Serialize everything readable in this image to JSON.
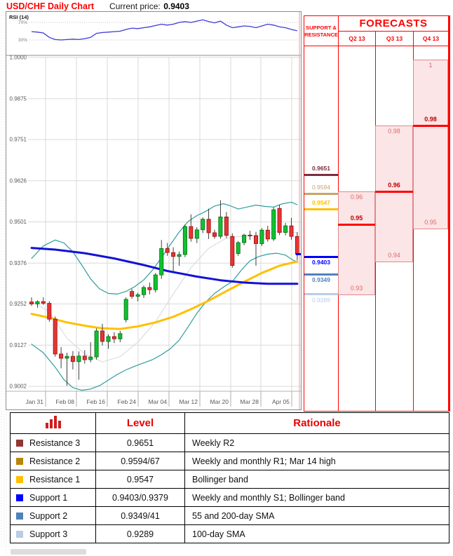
{
  "header": {
    "title": "USD/CHF Daily Chart",
    "current_price_label": "Current price:",
    "current_price_value": "0.9403"
  },
  "chart_data": {
    "type": "candlestick",
    "title": "USD/CHF Daily Chart",
    "current_price": 0.9403,
    "y_axis": {
      "tick_labels": [
        "1.0000",
        "0.9875",
        "0.9751",
        "0.9626",
        "0.9501",
        "0.9376",
        "0.9252",
        "0.9127",
        "0.9002"
      ],
      "tick_values": [
        1.0,
        0.9875,
        0.9751,
        0.9626,
        0.9501,
        0.9376,
        0.9252,
        0.9127,
        0.9002
      ],
      "min": 0.9002,
      "max": 1.0,
      "grid": true
    },
    "x_axis": {
      "tick_labels": [
        "Jan 31",
        "Feb 08",
        "Feb 16",
        "Feb 24",
        "Mar 04",
        "Mar 12",
        "Mar 20",
        "Mar 28",
        "Apr 05"
      ],
      "grid": true
    },
    "rsi": {
      "label": "RSI (14)",
      "upper_label": "70%",
      "lower_label": "30%",
      "upper": 70,
      "lower": 30,
      "line_color": "#3c3cd8",
      "values": [
        49,
        48,
        46,
        36,
        31,
        30,
        31,
        32,
        31,
        33,
        36,
        45,
        47,
        48,
        49,
        50,
        54,
        57,
        56,
        58,
        60,
        63,
        66,
        64,
        66,
        70,
        72,
        70,
        73,
        76,
        72,
        69,
        73,
        64,
        58,
        60,
        62,
        61,
        58,
        62,
        66,
        64,
        60,
        58,
        54,
        51
      ]
    },
    "candles_ohlc": [
      [
        0.9258,
        0.9272,
        0.9246,
        0.9252
      ],
      [
        0.9252,
        0.9263,
        0.924,
        0.9259
      ],
      [
        0.9259,
        0.9272,
        0.9249,
        0.9254
      ],
      [
        0.9254,
        0.926,
        0.9198,
        0.9206
      ],
      [
        0.9206,
        0.9214,
        0.9092,
        0.91
      ],
      [
        0.91,
        0.9121,
        0.9057,
        0.9087
      ],
      [
        0.9087,
        0.9104,
        0.9004,
        0.9093
      ],
      [
        0.9093,
        0.9109,
        0.9053,
        0.9077
      ],
      [
        0.9077,
        0.9108,
        0.9022,
        0.9094
      ],
      [
        0.9094,
        0.9112,
        0.9071,
        0.9083
      ],
      [
        0.9083,
        0.9136,
        0.9075,
        0.9091
      ],
      [
        0.9091,
        0.9178,
        0.9083,
        0.917
      ],
      [
        0.917,
        0.9192,
        0.9126,
        0.9138
      ],
      [
        0.9138,
        0.916,
        0.9116,
        0.9153
      ],
      [
        0.9153,
        0.9166,
        0.9133,
        0.9146
      ],
      [
        0.9146,
        0.917,
        0.9136,
        0.9162
      ],
      [
        0.9204,
        0.9272,
        0.9196,
        0.9266
      ],
      [
        0.929,
        0.9298,
        0.9268,
        0.9275
      ],
      [
        0.9275,
        0.9286,
        0.926,
        0.928
      ],
      [
        0.928,
        0.9308,
        0.927,
        0.9302
      ],
      [
        0.9302,
        0.9317,
        0.9281,
        0.9295
      ],
      [
        0.9295,
        0.9346,
        0.9287,
        0.934
      ],
      [
        0.934,
        0.9446,
        0.9328,
        0.942
      ],
      [
        0.942,
        0.9437,
        0.9398,
        0.9408
      ],
      [
        0.9408,
        0.9424,
        0.9351,
        0.9396
      ],
      [
        0.9396,
        0.9411,
        0.9368,
        0.9402
      ],
      [
        0.9402,
        0.9493,
        0.9394,
        0.9487
      ],
      [
        0.9487,
        0.9524,
        0.9441,
        0.9451
      ],
      [
        0.9451,
        0.9485,
        0.9437,
        0.9477
      ],
      [
        0.9477,
        0.9515,
        0.9467,
        0.9509
      ],
      [
        0.9509,
        0.9541,
        0.9449,
        0.9468
      ],
      [
        0.9468,
        0.9477,
        0.945,
        0.9457
      ],
      [
        0.9457,
        0.9567,
        0.945,
        0.9516
      ],
      [
        0.9516,
        0.9531,
        0.9452,
        0.946
      ],
      [
        0.9457,
        0.9466,
        0.9362,
        0.9369
      ],
      [
        0.9405,
        0.9443,
        0.9398,
        0.9438
      ],
      [
        0.9438,
        0.9465,
        0.943,
        0.9461
      ],
      [
        0.9461,
        0.9474,
        0.9446,
        0.9459
      ],
      [
        0.9459,
        0.9471,
        0.9368,
        0.9435
      ],
      [
        0.9435,
        0.9482,
        0.9428,
        0.9476
      ],
      [
        0.9476,
        0.9489,
        0.9441,
        0.9449
      ],
      [
        0.9449,
        0.9546,
        0.9443,
        0.9538
      ],
      [
        0.9542,
        0.9553,
        0.9461,
        0.9469
      ],
      [
        0.9469,
        0.9498,
        0.946,
        0.9489
      ],
      [
        0.9489,
        0.9513,
        0.9447,
        0.9457
      ],
      [
        0.9457,
        0.947,
        0.9385,
        0.9403
      ]
    ],
    "candle_up_color": "#0fc12f",
    "candle_down_color": "#e83434",
    "indicators": [
      {
        "name": "bollinger-upper",
        "color": "#2e9c9c",
        "width": 1.2,
        "points": [
          [
            0,
            0.939
          ],
          [
            2,
            0.9428
          ],
          [
            4,
            0.9446
          ],
          [
            5.5,
            0.9437
          ],
          [
            7,
            0.941
          ],
          [
            8.5,
            0.937
          ],
          [
            10,
            0.9328
          ],
          [
            11.5,
            0.9298
          ],
          [
            13,
            0.9284
          ],
          [
            14.5,
            0.9282
          ],
          [
            16,
            0.929
          ],
          [
            17.5,
            0.9305
          ],
          [
            19,
            0.9325
          ],
          [
            20.5,
            0.9355
          ],
          [
            22,
            0.9392
          ],
          [
            23.5,
            0.9432
          ],
          [
            25,
            0.947
          ],
          [
            26.5,
            0.9502
          ],
          [
            28,
            0.952
          ],
          [
            29.5,
            0.9533
          ],
          [
            31,
            0.9549
          ],
          [
            32.5,
            0.9556
          ],
          [
            33.5,
            0.9551
          ],
          [
            35,
            0.954
          ],
          [
            36.5,
            0.9546
          ],
          [
            38,
            0.9552
          ],
          [
            39.5,
            0.9548
          ],
          [
            41,
            0.9546
          ],
          [
            42.5,
            0.9556
          ],
          [
            44,
            0.9561
          ],
          [
            45,
            0.9553
          ]
        ]
      },
      {
        "name": "bollinger-lower",
        "color": "#2e9c9c",
        "width": 1.2,
        "points": [
          [
            0,
            0.913
          ],
          [
            2,
            0.9104
          ],
          [
            4,
            0.906
          ],
          [
            5.5,
            0.9022
          ],
          [
            7,
            0.8998
          ],
          [
            8.5,
            0.899
          ],
          [
            10,
            0.8994
          ],
          [
            11.5,
            0.9004
          ],
          [
            13,
            0.9021
          ],
          [
            14.5,
            0.9038
          ],
          [
            16,
            0.9052
          ],
          [
            17.5,
            0.9063
          ],
          [
            19,
            0.9073
          ],
          [
            20.5,
            0.9083
          ],
          [
            22,
            0.9098
          ],
          [
            23.5,
            0.9116
          ],
          [
            25,
            0.9142
          ],
          [
            26.5,
            0.9182
          ],
          [
            28,
            0.9224
          ],
          [
            29.5,
            0.9258
          ],
          [
            31,
            0.9284
          ],
          [
            32.5,
            0.9303
          ],
          [
            34,
            0.932
          ],
          [
            35.5,
            0.9354
          ],
          [
            37,
            0.9383
          ],
          [
            38.5,
            0.9396
          ],
          [
            40,
            0.9403
          ],
          [
            41.5,
            0.9406
          ],
          [
            43,
            0.94
          ],
          [
            44.2,
            0.9386
          ],
          [
            45,
            0.9379
          ]
        ]
      },
      {
        "name": "bollinger-middle",
        "color": "#d8d6d6",
        "width": 1,
        "points": [
          [
            0,
            0.926
          ],
          [
            3,
            0.9228
          ],
          [
            6,
            0.9148
          ],
          [
            9,
            0.91
          ],
          [
            12,
            0.9076
          ],
          [
            15,
            0.9092
          ],
          [
            18,
            0.9136
          ],
          [
            21,
            0.9198
          ],
          [
            24,
            0.9282
          ],
          [
            27,
            0.9362
          ],
          [
            30,
            0.9421
          ],
          [
            33,
            0.9452
          ],
          [
            36,
            0.9458
          ],
          [
            39,
            0.9462
          ],
          [
            42,
            0.9473
          ],
          [
            45,
            0.9468
          ]
        ]
      },
      {
        "name": "sma-100-day",
        "color": "#ffc000",
        "width": 3,
        "points": [
          [
            0,
            0.9222
          ],
          [
            3,
            0.921
          ],
          [
            6,
            0.9196
          ],
          [
            9,
            0.9186
          ],
          [
            12,
            0.9178
          ],
          [
            15,
            0.9176
          ],
          [
            18,
            0.9184
          ],
          [
            21,
            0.9196
          ],
          [
            24,
            0.9213
          ],
          [
            27,
            0.9236
          ],
          [
            30,
            0.9262
          ],
          [
            33,
            0.9291
          ],
          [
            36,
            0.9319
          ],
          [
            39,
            0.9346
          ],
          [
            42,
            0.9368
          ],
          [
            45,
            0.9381
          ]
        ]
      },
      {
        "name": "sma-200-day",
        "color": "#1212d6",
        "width": 3,
        "points": [
          [
            0,
            0.9422
          ],
          [
            4,
            0.9417
          ],
          [
            9,
            0.9406
          ],
          [
            14,
            0.939
          ],
          [
            19,
            0.937
          ],
          [
            23,
            0.9352
          ],
          [
            28,
            0.9335
          ],
          [
            32,
            0.9324
          ],
          [
            36,
            0.9317
          ],
          [
            40,
            0.9313
          ],
          [
            45,
            0.9313
          ]
        ]
      }
    ]
  },
  "sr_panel": {
    "header_line1": "SUPPORT &",
    "header_line2": "RESISTANCE",
    "levels": [
      {
        "value": 0.9651,
        "label": "0.9651",
        "color": "#7c2d3e",
        "bold": true,
        "label_pos": "above"
      },
      {
        "value": 0.9594,
        "label": "0.9594",
        "color": "#c9a46b",
        "bold": false,
        "label_pos": "above"
      },
      {
        "value": 0.9547,
        "label": "0.9547",
        "color": "#ffc000",
        "bold": true,
        "label_pos": "above"
      },
      {
        "value": 0.9403,
        "label": "0.9403",
        "color": "#0000ff",
        "bold": true,
        "label_pos": "below"
      },
      {
        "value": 0.9349,
        "label": "0.9349",
        "color": "#4f81bd",
        "bold": true,
        "label_pos": "below"
      },
      {
        "value": 0.9289,
        "label": "0.9289",
        "color": "#b9cde5",
        "bold": false,
        "label_pos": "below"
      }
    ]
  },
  "forecasts": {
    "title": "FORECASTS",
    "quarters": [
      {
        "label": "Q2 13",
        "high": 0.96,
        "central": 0.95,
        "low": 0.93,
        "high_label": "0.96",
        "central_label": "0.95",
        "low_label": "0.93"
      },
      {
        "label": "Q3 13",
        "high": 0.98,
        "central": 0.96,
        "low": 0.94,
        "high_label": "0.98",
        "central_label": "0.96",
        "low_label": "0.94"
      },
      {
        "label": "Q4 13",
        "high": 1.0,
        "central": 0.98,
        "low": 0.95,
        "high_label": "1",
        "central_label": "0.98",
        "low_label": "0.95"
      }
    ]
  },
  "table": {
    "headers": {
      "level": "Level",
      "rationale": "Rationale"
    },
    "rows": [
      {
        "swatch": "#943634",
        "name": "Resistance 3",
        "level": "0.9651",
        "rationale": "Weekly R2"
      },
      {
        "swatch": "#b8860b",
        "name": "Resistance 2",
        "level": "0.9594/67",
        "rationale": "Weekly and monthly R1; Mar 14 high"
      },
      {
        "swatch": "#ffc000",
        "name": "Resistance 1",
        "level": "0.9547",
        "rationale": "Bollinger band"
      },
      {
        "swatch": "#0000ff",
        "name": "Support 1",
        "level": "0.9403/0.9379",
        "rationale": "Weekly and monthly S1; Bollinger band"
      },
      {
        "swatch": "#4f81bd",
        "name": "Support 2",
        "level": "0.9349/41",
        "rationale": "55 and 200-day SMA"
      },
      {
        "swatch": "#b8cce4",
        "name": "Support 3",
        "level": "0.9289",
        "rationale": "100-day SMA"
      }
    ]
  }
}
